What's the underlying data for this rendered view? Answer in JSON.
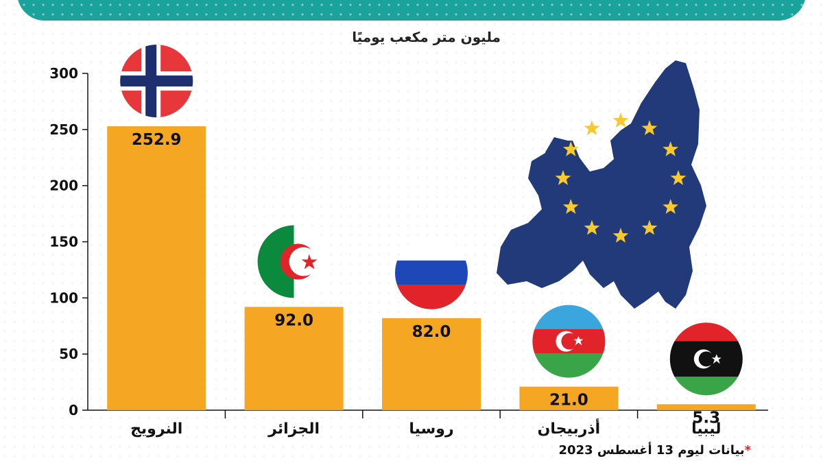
{
  "header": {
    "banner_color": "#1aa39b"
  },
  "unit_label": "مليون متر مكعب يوميًا",
  "footnote": {
    "star": "*",
    "text": "بيانات ليوم 13 أغسطس 2023"
  },
  "colors": {
    "bar": "#f5a623",
    "eu_map": "#233a7a",
    "eu_star": "#f7c92e",
    "axis_text": "#111111"
  },
  "chart_data": {
    "type": "bar",
    "categories": [
      "النرويج",
      "الجزائر",
      "روسيا",
      "أذربيجان",
      "ليبيا"
    ],
    "values": [
      252.9,
      92.0,
      82.0,
      21.0,
      5.3
    ],
    "value_labels": [
      "252.9",
      "92.0",
      "82.0",
      "21.0",
      "5.3"
    ],
    "flags": [
      "norway-flag",
      "algeria-flag",
      "russia-flag",
      "azerbaijan-flag",
      "libya-flag"
    ],
    "ylim": [
      0,
      300
    ],
    "yticks": [
      0,
      50,
      100,
      150,
      200,
      250,
      300
    ],
    "grid": false,
    "legend": "none"
  }
}
